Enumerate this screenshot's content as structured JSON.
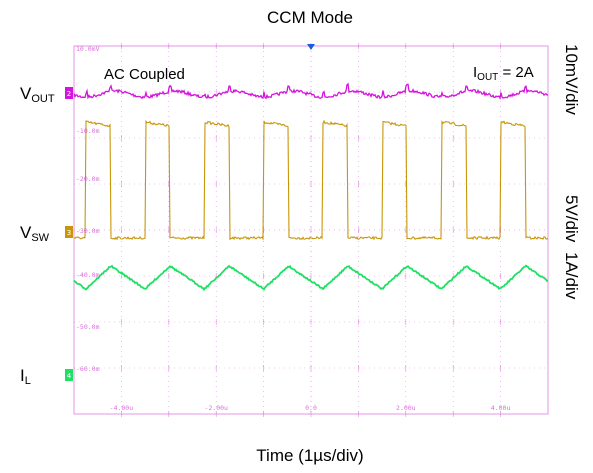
{
  "chart_data": {
    "type": "line",
    "title": "CCM Mode",
    "xlabel": "Time (1µs/div)",
    "annotations": {
      "coupling": "AC Coupled",
      "current_main": "I",
      "current_sub": "OUT",
      "current_value": " = 2A"
    },
    "channels": [
      {
        "label_main": "V",
        "label_sub": "OUT",
        "scale": "10mV/div",
        "color": "#d214dc",
        "marker": "2"
      },
      {
        "label_main": "V",
        "label_sub": "SW",
        "scale": "5V/div",
        "color": "#c8960a",
        "marker": "3"
      },
      {
        "label_main": "I",
        "label_sub": "L",
        "scale": "1A/div",
        "color": "#1ee164",
        "marker": "4"
      }
    ],
    "grid": true,
    "y_tick_labels": [
      "10.0mV",
      "-10.0m",
      "-20.0m",
      "-30.0m",
      "-40.0m",
      "-50.0m",
      "-60.0m"
    ],
    "x_tick_labels": [
      "-4.00u",
      "-2.00u",
      "0.0",
      "2.00u",
      "4.00u"
    ],
    "x_range_us": [
      -5,
      5
    ],
    "switching": {
      "period_us": 1.25,
      "duty": 0.42,
      "rising_edges_us": [
        -4.75,
        -3.5,
        -2.25,
        -1.0,
        0.25,
        1.5,
        2.75,
        4.0
      ],
      "vsw_high_v": 20.5,
      "vsw_low_v": 0,
      "il_min_a": 1.6,
      "il_max_a": 2.4,
      "vout_ripple_mv_pp": 4
    },
    "colors": {
      "grid": "#d23cd2",
      "tick_text": "#d23cd2",
      "trigger": "#1e5adc"
    }
  }
}
